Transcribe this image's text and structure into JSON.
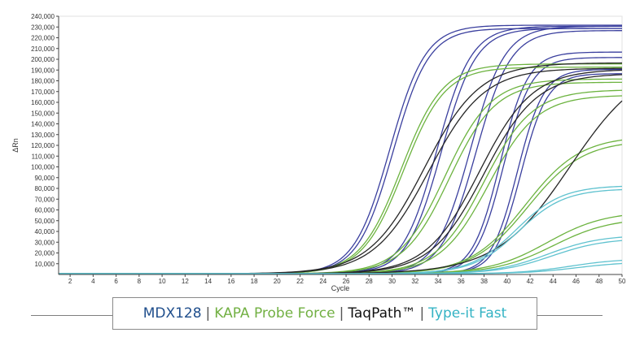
{
  "chart_data": {
    "type": "line",
    "xlabel": "Cycle",
    "ylabel": "ΔRn",
    "xlim": [
      1,
      50
    ],
    "ylim": [
      0,
      240000
    ],
    "x_ticks": [
      "2",
      "4",
      "6",
      "8",
      "10",
      "12",
      "14",
      "16",
      "18",
      "20",
      "22",
      "24",
      "26",
      "28",
      "30",
      "32",
      "34",
      "36",
      "38",
      "40",
      "42",
      "44",
      "46",
      "48",
      "50"
    ],
    "y_ticks": [
      "10,000",
      "20,000",
      "30,000",
      "40,000",
      "50,000",
      "60,000",
      "70,000",
      "80,000",
      "90,000",
      "100,000",
      "110,000",
      "120,000",
      "130,000",
      "140,000",
      "150,000",
      "160,000",
      "170,000",
      "180,000",
      "190,000",
      "200,000",
      "210,000",
      "220,000",
      "230,000",
      "240,000"
    ],
    "grid": false,
    "curves": [
      {
        "group": 0,
        "plateau": 231000,
        "midpoint": 29.8,
        "slope": 1.55
      },
      {
        "group": 0,
        "plateau": 228000,
        "midpoint": 30.1,
        "slope": 1.55
      },
      {
        "group": 0,
        "plateau": 230000,
        "midpoint": 33.9,
        "slope": 1.5
      },
      {
        "group": 0,
        "plateau": 228000,
        "midpoint": 34.3,
        "slope": 1.5
      },
      {
        "group": 0,
        "plateau": 230000,
        "midpoint": 36.8,
        "slope": 1.5
      },
      {
        "group": 0,
        "plateau": 226000,
        "midpoint": 37.3,
        "slope": 1.5
      },
      {
        "group": 0,
        "plateau": 206000,
        "midpoint": 39.4,
        "slope": 1.2
      },
      {
        "group": 0,
        "plateau": 201000,
        "midpoint": 39.7,
        "slope": 1.2
      },
      {
        "group": 0,
        "plateau": 190000,
        "midpoint": 40.9,
        "slope": 1.15
      },
      {
        "group": 0,
        "plateau": 186000,
        "midpoint": 41.2,
        "slope": 1.15
      },
      {
        "group": 1,
        "plateau": 195000,
        "midpoint": 30.8,
        "slope": 1.8
      },
      {
        "group": 1,
        "plateau": 192000,
        "midpoint": 31.0,
        "slope": 1.8
      },
      {
        "group": 1,
        "plateau": 181000,
        "midpoint": 34.6,
        "slope": 2.0
      },
      {
        "group": 1,
        "plateau": 178000,
        "midpoint": 35.0,
        "slope": 2.0
      },
      {
        "group": 1,
        "plateau": 171000,
        "midpoint": 38.0,
        "slope": 2.1
      },
      {
        "group": 1,
        "plateau": 166000,
        "midpoint": 38.4,
        "slope": 2.1
      },
      {
        "group": 1,
        "plateau": 128000,
        "midpoint": 41.6,
        "slope": 2.4
      },
      {
        "group": 1,
        "plateau": 124000,
        "midpoint": 41.8,
        "slope": 2.4
      },
      {
        "group": 1,
        "plateau": 58000,
        "midpoint": 43.5,
        "slope": 2.5
      },
      {
        "group": 1,
        "plateau": 52000,
        "midpoint": 44.0,
        "slope": 2.5
      },
      {
        "group": 2,
        "plateau": 196000,
        "midpoint": 32.8,
        "slope": 2.4
      },
      {
        "group": 2,
        "plateau": 191000,
        "midpoint": 33.2,
        "slope": 2.4
      },
      {
        "group": 2,
        "plateau": 190000,
        "midpoint": 37.6,
        "slope": 2.3
      },
      {
        "group": 2,
        "plateau": 186000,
        "midpoint": 38.0,
        "slope": 2.3
      },
      {
        "group": 2,
        "plateau": 200000,
        "midpoint": 45.5,
        "slope": 3.2
      },
      {
        "group": 3,
        "plateau": 82000,
        "midpoint": 40.8,
        "slope": 2.0
      },
      {
        "group": 3,
        "plateau": 79000,
        "midpoint": 41.0,
        "slope": 2.0
      },
      {
        "group": 3,
        "plateau": 36000,
        "midpoint": 43.5,
        "slope": 2.3
      },
      {
        "group": 3,
        "plateau": 33000,
        "midpoint": 43.9,
        "slope": 2.3
      },
      {
        "group": 3,
        "plateau": 14000,
        "midpoint": 45.5,
        "slope": 2.2
      },
      {
        "group": 3,
        "plateau": 11000,
        "midpoint": 46.0,
        "slope": 2.2
      }
    ],
    "series": [
      {
        "name": "MDX128",
        "color": "#3a3f9e"
      },
      {
        "name": "KAPA Probe Force",
        "color": "#6cb33f"
      },
      {
        "name": "TaqPath™",
        "color": "#262626"
      },
      {
        "name": "Type-it Fast",
        "color": "#5fc2cf"
      }
    ]
  },
  "legend": {
    "mdx": "MDX128",
    "kapa": "KAPA Probe Force",
    "taqpath": "TaqPath™",
    "typeit": "Type-it Fast",
    "separator": "|",
    "colors": {
      "mdx": "#1f4e8c",
      "kapa": "#72b043",
      "taqpath": "#111111",
      "typeit": "#34b3c4",
      "separator": "#555555"
    }
  }
}
